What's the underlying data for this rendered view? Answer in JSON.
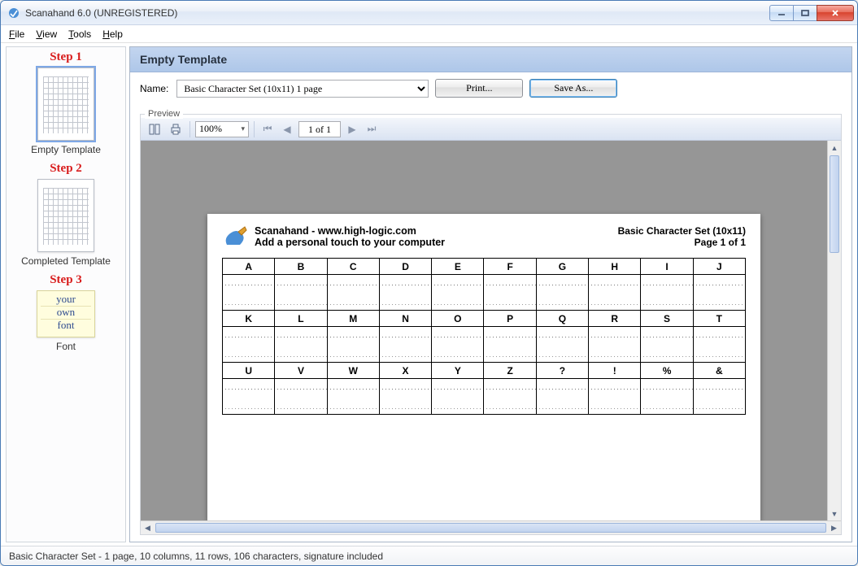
{
  "window": {
    "title": "Scanahand 6.0 (UNREGISTERED)"
  },
  "menu": {
    "items": [
      "File",
      "View",
      "Tools",
      "Help"
    ]
  },
  "sidebar": {
    "steps": [
      {
        "title": "Step 1",
        "label": "Empty Template"
      },
      {
        "title": "Step 2",
        "label": "Completed Template"
      },
      {
        "title": "Step 3",
        "label": "Font"
      }
    ],
    "sticky": {
      "l1": "your",
      "l2": "own",
      "l3": "font"
    }
  },
  "main": {
    "header": "Empty Template",
    "name_label": "Name:",
    "template_select": "Basic Character Set (10x11) 1 page",
    "print_btn": "Print...",
    "saveas_btn": "Save As...",
    "preview_label": "Preview"
  },
  "toolbar": {
    "zoom": "100%",
    "page": "1 of 1"
  },
  "page": {
    "head_l1": "Scanahand - www.high-logic.com",
    "head_l2": "Add a personal touch to your computer",
    "head_r1": "Basic Character Set (10x11)",
    "head_r2": "Page 1 of 1",
    "rows": [
      [
        "A",
        "B",
        "C",
        "D",
        "E",
        "F",
        "G",
        "H",
        "I",
        "J"
      ],
      [
        "K",
        "L",
        "M",
        "N",
        "O",
        "P",
        "Q",
        "R",
        "S",
        "T"
      ],
      [
        "U",
        "V",
        "W",
        "X",
        "Y",
        "Z",
        "?",
        "!",
        "%",
        "&"
      ]
    ]
  },
  "status": "Basic Character Set - 1 page, 10 columns, 11 rows, 106 characters, signature included",
  "colors": {
    "accent": "#aec7e9",
    "step_header": "#d81b1b",
    "viewport_bg": "#969696"
  }
}
